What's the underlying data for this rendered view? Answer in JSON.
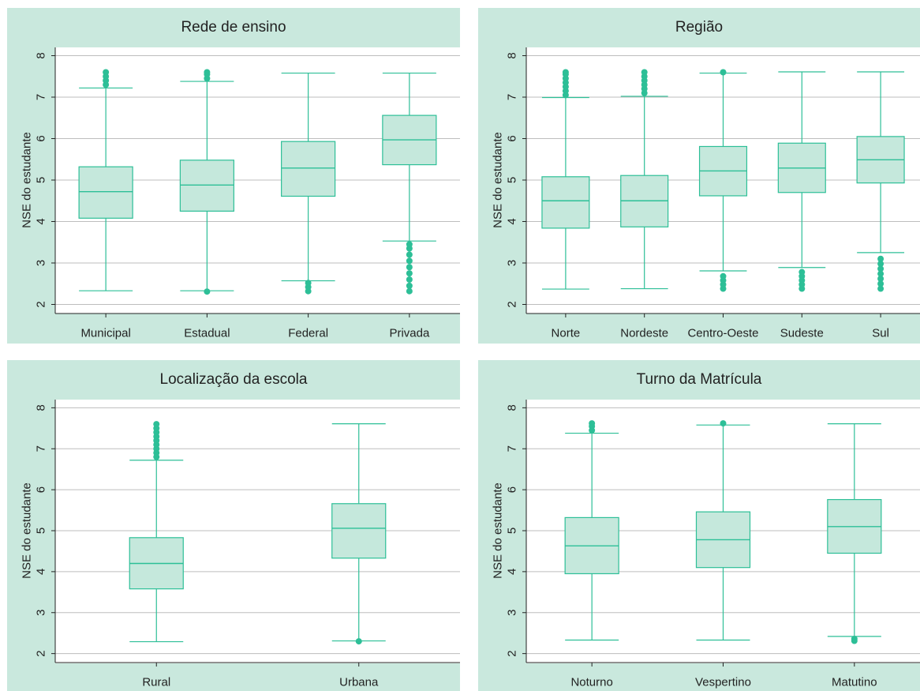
{
  "colors": {
    "panel_bg": "#c9e8dd",
    "box_fill": "#c5e8dc",
    "accent": "#2dbf97",
    "grid": "#bdbdbd",
    "text": "#222222"
  },
  "chart_data": [
    {
      "type": "boxplot",
      "title": "Rede de ensino",
      "ylabel": "NSE do estudante",
      "xlabel": "",
      "ylim": [
        1.8,
        8.2
      ],
      "yticks": [
        2,
        3,
        4,
        5,
        6,
        7,
        8
      ],
      "grid": true,
      "categories": [
        "Municipal",
        "Estadual",
        "Federal",
        "Privada"
      ],
      "boxes": [
        {
          "whisker_low": 2.33,
          "q1": 4.08,
          "median": 4.72,
          "q3": 5.32,
          "whisker_high": 7.22,
          "outliers_low": [],
          "outliers_high": [
            7.3,
            7.4,
            7.5,
            7.6
          ]
        },
        {
          "whisker_low": 2.33,
          "q1": 4.25,
          "median": 4.88,
          "q3": 5.48,
          "whisker_high": 7.38,
          "outliers_low": [
            2.31
          ],
          "outliers_high": [
            7.45,
            7.55,
            7.6
          ]
        },
        {
          "whisker_low": 2.57,
          "q1": 4.61,
          "median": 5.29,
          "q3": 5.93,
          "whisker_high": 7.58,
          "outliers_low": [
            2.32,
            2.42,
            2.52
          ],
          "outliers_high": []
        },
        {
          "whisker_low": 3.53,
          "q1": 5.37,
          "median": 5.97,
          "q3": 6.56,
          "whisker_high": 7.58,
          "outliers_low": [
            2.32,
            2.45,
            2.6,
            2.75,
            2.9,
            3.05,
            3.2,
            3.35,
            3.45
          ],
          "outliers_high": []
        }
      ]
    },
    {
      "type": "boxplot",
      "title": "Região",
      "ylabel": "NSE do estudante",
      "xlabel": "",
      "ylim": [
        1.8,
        8.2
      ],
      "yticks": [
        2,
        3,
        4,
        5,
        6,
        7,
        8
      ],
      "grid": true,
      "categories": [
        "Norte",
        "Nordeste",
        "Centro-Oeste",
        "Sudeste",
        "Sul"
      ],
      "boxes": [
        {
          "whisker_low": 2.37,
          "q1": 3.84,
          "median": 4.5,
          "q3": 5.08,
          "whisker_high": 6.99,
          "outliers_low": [],
          "outliers_high": [
            7.05,
            7.15,
            7.25,
            7.35,
            7.45,
            7.55,
            7.6
          ]
        },
        {
          "whisker_low": 2.38,
          "q1": 3.87,
          "median": 4.5,
          "q3": 5.11,
          "whisker_high": 7.02,
          "outliers_low": [],
          "outliers_high": [
            7.1,
            7.2,
            7.3,
            7.4,
            7.5,
            7.6
          ]
        },
        {
          "whisker_low": 2.81,
          "q1": 4.62,
          "median": 5.22,
          "q3": 5.81,
          "whisker_high": 7.58,
          "outliers_low": [
            2.38,
            2.48,
            2.58,
            2.68
          ],
          "outliers_high": [
            7.6
          ]
        },
        {
          "whisker_low": 2.89,
          "q1": 4.7,
          "median": 5.29,
          "q3": 5.89,
          "whisker_high": 7.61,
          "outliers_low": [
            2.38,
            2.48,
            2.58,
            2.68,
            2.78
          ],
          "outliers_high": []
        },
        {
          "whisker_low": 3.25,
          "q1": 4.93,
          "median": 5.49,
          "q3": 6.05,
          "whisker_high": 7.61,
          "outliers_low": [
            2.38,
            2.5,
            2.62,
            2.74,
            2.86,
            2.98,
            3.1
          ],
          "outliers_high": []
        }
      ]
    },
    {
      "type": "boxplot",
      "title": "Localização da escola",
      "ylabel": "NSE do estudante",
      "xlabel": "",
      "ylim": [
        1.8,
        8.2
      ],
      "yticks": [
        2,
        3,
        4,
        5,
        6,
        7,
        8
      ],
      "grid": true,
      "categories": [
        "Rural",
        "Urbana"
      ],
      "boxes": [
        {
          "whisker_low": 2.29,
          "q1": 3.58,
          "median": 4.2,
          "q3": 4.83,
          "whisker_high": 6.72,
          "outliers_low": [],
          "outliers_high": [
            6.8,
            6.9,
            7.0,
            7.1,
            7.2,
            7.3,
            7.4,
            7.5,
            7.6
          ]
        },
        {
          "whisker_low": 2.31,
          "q1": 4.33,
          "median": 5.06,
          "q3": 5.66,
          "whisker_high": 7.61,
          "outliers_low": [
            2.3
          ],
          "outliers_high": []
        }
      ]
    },
    {
      "type": "boxplot",
      "title": "Turno da Matrícula",
      "ylabel": "NSE do estudante",
      "xlabel": "",
      "ylim": [
        1.8,
        8.2
      ],
      "yticks": [
        2,
        3,
        4,
        5,
        6,
        7,
        8
      ],
      "grid": true,
      "categories": [
        "Noturno",
        "Vespertino",
        "Matutino"
      ],
      "boxes": [
        {
          "whisker_low": 2.33,
          "q1": 3.95,
          "median": 4.63,
          "q3": 5.32,
          "whisker_high": 7.38,
          "outliers_low": [],
          "outliers_high": [
            7.45,
            7.55,
            7.62
          ]
        },
        {
          "whisker_low": 2.33,
          "q1": 4.1,
          "median": 4.78,
          "q3": 5.46,
          "whisker_high": 7.58,
          "outliers_low": [],
          "outliers_high": [
            7.62
          ]
        },
        {
          "whisker_low": 2.42,
          "q1": 4.45,
          "median": 5.1,
          "q3": 5.76,
          "whisker_high": 7.61,
          "outliers_low": [
            2.31,
            2.36
          ],
          "outliers_high": []
        }
      ]
    }
  ]
}
